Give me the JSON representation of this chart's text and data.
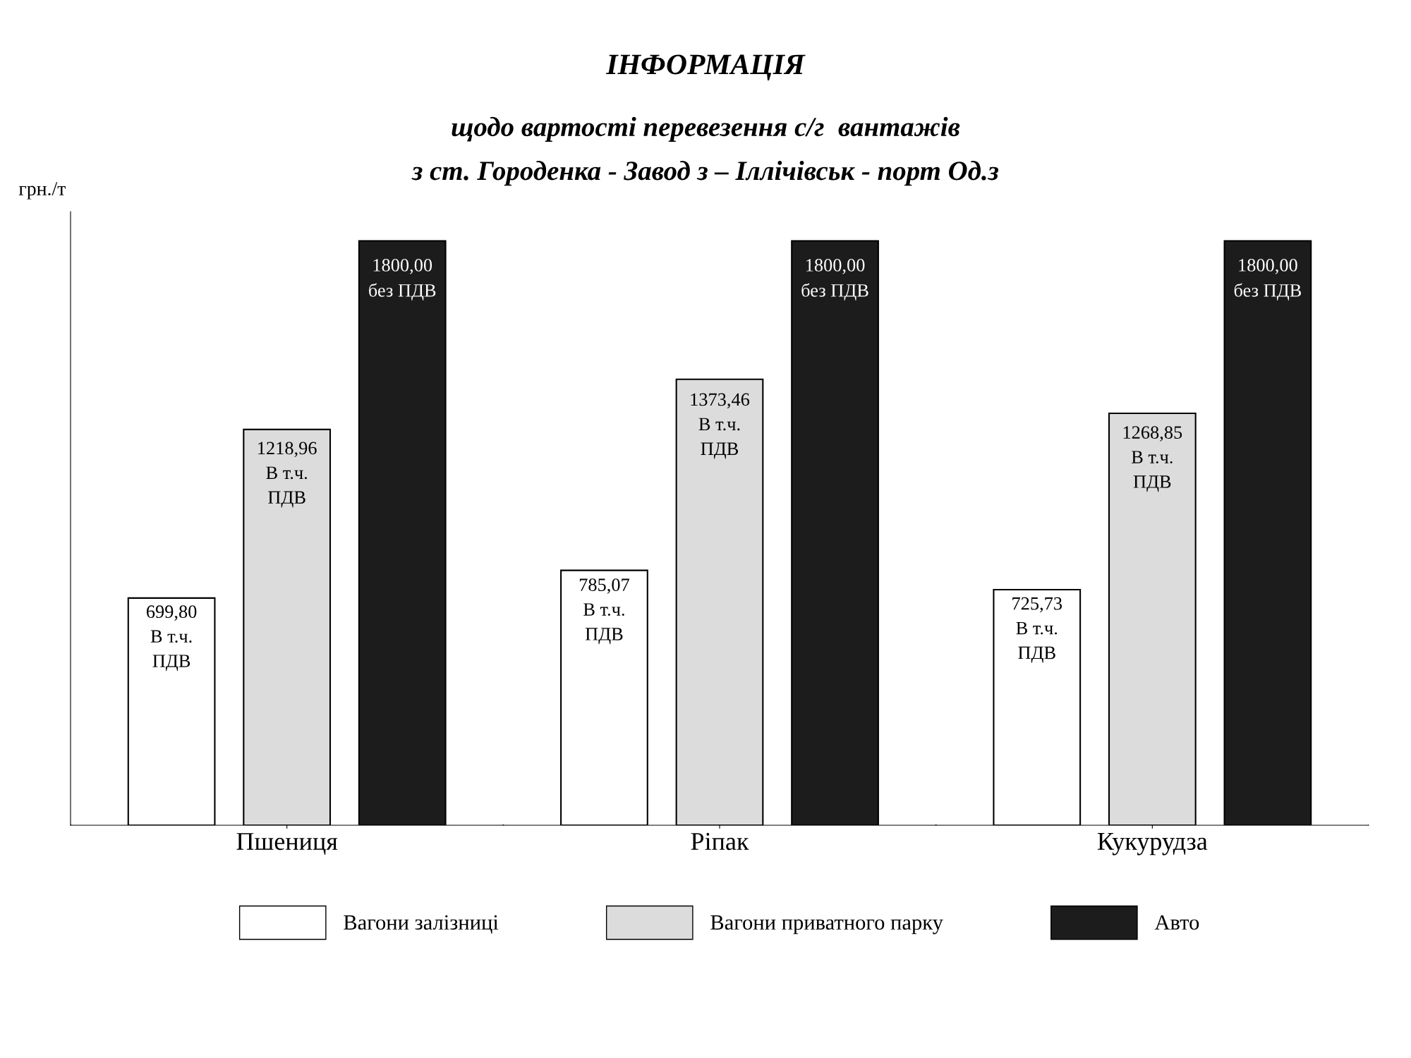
{
  "chart_data": {
    "type": "bar",
    "title": "ІНФОРМАЦІЯ",
    "subtitle": "щодо вартості перевезення с/г  вантажів\nз ст. Городенка - Завод з – Іллічівськ - порт Од.з",
    "ylabel": "грн./т",
    "categories": [
      "Пшениця",
      "Ріпак",
      "Кукурудза"
    ],
    "series": [
      {
        "name": "Вагони залізниці",
        "color": "#ffffff",
        "values": [
          699.8,
          785.07,
          725.73
        ],
        "value_labels": [
          "699,80\nВ т.ч.\nПДВ",
          "785,07\nВ т.ч.\nПДВ",
          "725,73\nВ т.ч.\nПДВ"
        ]
      },
      {
        "name": "Вагони приватного парку",
        "color": "#dcdcdc",
        "values": [
          1218.96,
          1373.46,
          1268.85
        ],
        "value_labels": [
          "1218,96\nВ т.ч.\nПДВ",
          "1373,46\nВ т.ч.\nПДВ",
          "1268,85\nВ т.ч.\nПДВ"
        ]
      },
      {
        "name": "Авто",
        "color": "#1c1c1c",
        "values": [
          1800.0,
          1800.0,
          1800.0
        ],
        "value_labels": [
          "1800,00\nбез ПДВ",
          "1800,00\nбез ПДВ",
          "1800,00\nбез ПДВ"
        ]
      }
    ],
    "legend": "bottom",
    "tick_labels": "x",
    "grid": false
  }
}
